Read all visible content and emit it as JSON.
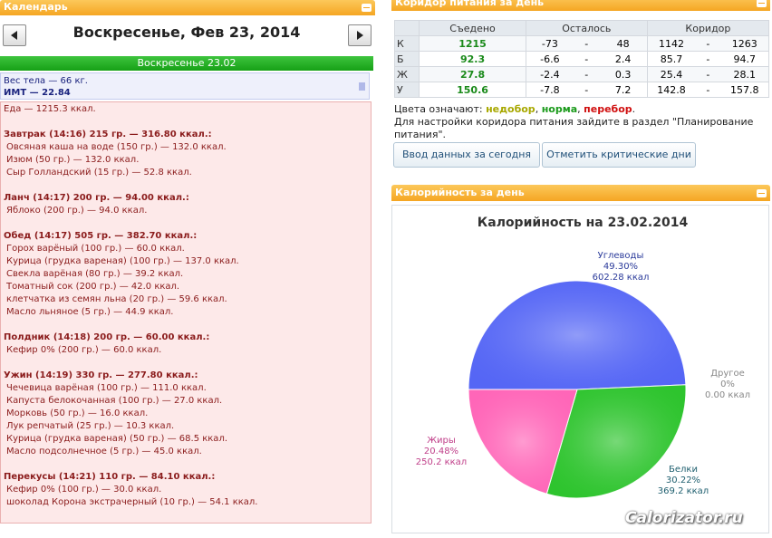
{
  "calendar_panel": {
    "header": "Календарь",
    "date_title": "Воскресенье, Фев 23, 2014",
    "day_bar": "Воскресенье 23.02",
    "body": [
      "Вес тела — 66 кг.",
      "ИМТ — 22.84"
    ],
    "food_total": "Еда — 1215.3 ккал.",
    "meals": [
      {
        "title": "Завтрак (14:16) 215 гр. — 316.80 ккал.:",
        "items": [
          "Овсяная каша на воде (150 гр.) — 132.0 ккал.",
          "Изюм (50 гр.) — 132.0 ккал.",
          "Сыр Голландский (15 гр.) — 52.8 ккал."
        ]
      },
      {
        "title": "Ланч (14:17) 200 гр. — 94.00 ккал.:",
        "items": [
          "Яблоко (200 гр.) — 94.0 ккал."
        ]
      },
      {
        "title": "Обед (14:17) 505 гр. — 382.70 ккал.:",
        "items": [
          "Горох варёный (100 гр.) — 60.0 ккал.",
          "Курица (грудка вареная) (100 гр.) — 137.0 ккал.",
          "Свекла варёная (80 гр.) — 39.2 ккал.",
          "Томатный сок (200 гр.) — 42.0 ккал.",
          "клетчатка из семян льна (20 гр.) — 59.6 ккал.",
          "Масло льняное (5 гр.) — 44.9 ккал."
        ]
      },
      {
        "title": "Полдник (14:18) 200 гр. — 60.00 ккал.:",
        "items": [
          "Кефир 0% (200 гр.) — 60.0 ккал."
        ]
      },
      {
        "title": "Ужин (14:19) 330 гр. — 277.80 ккал.:",
        "items": [
          "Чечевица варёная (100 гр.) — 111.0 ккал.",
          "Капуста белокочанная (100 гр.) — 27.0 ккал.",
          "Морковь (50 гр.) — 16.0 ккал.",
          "Лук репчатый (25 гр.) — 10.3 ккал.",
          "Курица (грудка вареная) (50 гр.) — 68.5 ккал.",
          "Масло подсолнечное (5 гр.) — 45.0 ккал."
        ]
      },
      {
        "title": "Перекусы (14:21) 110 гр. — 84.10 ккал.:",
        "items": [
          "Кефир 0% (100 гр.) — 30.0 ккал.",
          "шоколад Корона экстрачерный (10 гр.) — 54.1 ккал."
        ]
      }
    ]
  },
  "corridor_panel": {
    "header": "Коридор питания за день",
    "table": {
      "columns": [
        "Съедено",
        "Осталось",
        "Коридор"
      ],
      "separator": "-",
      "rows": [
        [
          "К",
          "1215",
          "-73",
          "48",
          "1142",
          "1263"
        ],
        [
          "Б",
          "92.3",
          "-6.6",
          "2.4",
          "85.7",
          "94.7"
        ],
        [
          "Ж",
          "27.8",
          "-2.4",
          "0.3",
          "25.4",
          "28.1"
        ],
        [
          "У",
          "150.6",
          "-7.8",
          "7.2",
          "142.8",
          "157.8"
        ]
      ]
    },
    "legend_parts": [
      "Цвета означают: ",
      "недобор",
      ", ",
      "норма",
      ", ",
      "перебор",
      "."
    ],
    "note": "Для настройки коридора питания зайдите в раздел \"Планирование питания\".",
    "buttons": [
      "Ввод данных за сегодня",
      "Отметить критические дни"
    ]
  },
  "calorie_panel": {
    "header": "Калорийность за день"
  },
  "chart_data": {
    "type": "pie",
    "title": "Калорийность на 23.02.2014",
    "series": [
      {
        "name": "Углеводы",
        "color": "#5566f5",
        "values": [
          49.3
        ],
        "value_labels": [
          "49.30%"
        ],
        "kcal_labels": [
          "602.28 ккал"
        ]
      },
      {
        "name": "Белки",
        "color": "#2ec42e",
        "values": [
          30.22
        ],
        "value_labels": [
          "30.22%"
        ],
        "kcal_labels": [
          "369.2 ккал"
        ]
      },
      {
        "name": "Жиры",
        "color": "#ff66b8",
        "values": [
          20.48
        ],
        "value_labels": [
          "20.48%"
        ],
        "kcal_labels": [
          "250.2 ккал"
        ]
      },
      {
        "name": "Другое",
        "color": "#aaaaaa",
        "values": [
          0
        ],
        "value_labels": [
          "0%"
        ],
        "kcal_labels": [
          "0.00 ккал"
        ]
      }
    ]
  },
  "watermark": "Calorizator.ru"
}
